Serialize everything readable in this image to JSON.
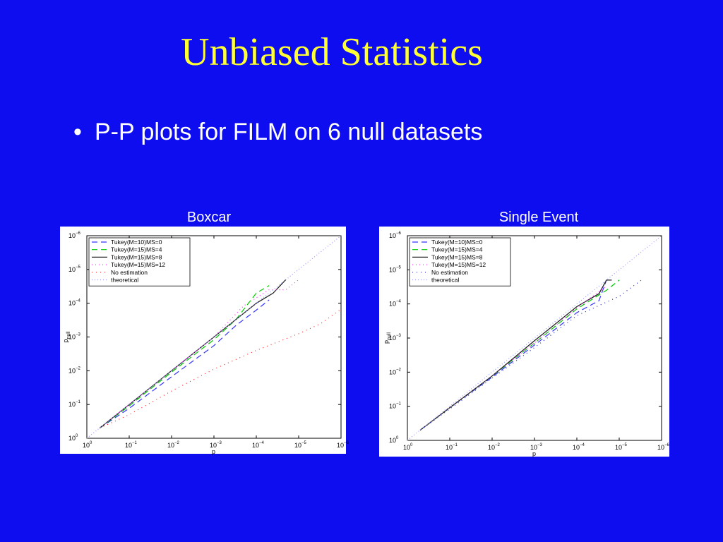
{
  "title": "Unbiased Statistics",
  "bullet": "P-P plots for FILM on 6 null datasets",
  "colors": {
    "background": "#0d0df0",
    "title": "#ffff33",
    "text": "#ffffff"
  },
  "chart_data": [
    {
      "type": "line",
      "title": "Boxcar",
      "xlabel": "p",
      "ylabel": "p",
      "ylabel_subscript": "null",
      "x_scale": "log-reversed",
      "y_scale": "log-reversed",
      "xlim": [
        1,
        1e-06
      ],
      "ylim": [
        1,
        1e-06
      ],
      "x_ticks": [
        {
          "base": "10",
          "exp": "0"
        },
        {
          "base": "10",
          "exp": "−1"
        },
        {
          "base": "10",
          "exp": "−2"
        },
        {
          "base": "10",
          "exp": "−3"
        },
        {
          "base": "10",
          "exp": "−4"
        },
        {
          "base": "10",
          "exp": "−5"
        },
        {
          "base": "10",
          "exp": "−6"
        }
      ],
      "y_ticks": [
        {
          "base": "10",
          "exp": "0"
        },
        {
          "base": "10",
          "exp": "−1"
        },
        {
          "base": "10",
          "exp": "−2"
        },
        {
          "base": "10",
          "exp": "−3"
        },
        {
          "base": "10",
          "exp": "−4"
        },
        {
          "base": "10",
          "exp": "−5"
        },
        {
          "base": "10",
          "exp": "−6"
        }
      ],
      "grid": false,
      "legend_position": "top-left",
      "series": [
        {
          "name": "Tukey(M=10)MS=0",
          "color": "#3333ff",
          "dash": "8,5",
          "x": [
            0.5,
            0.1,
            0.01,
            0.001,
            0.0003,
            0.0001,
            5e-05
          ],
          "y": [
            0.5,
            0.13,
            0.015,
            0.0018,
            0.00045,
            0.00016,
            8e-05
          ]
        },
        {
          "name": "Tukey(M=15)MS=4",
          "color": "#00cc00",
          "dash": "8,5",
          "x": [
            0.5,
            0.1,
            0.01,
            0.001,
            0.0003,
            0.0001,
            5e-05
          ],
          "y": [
            0.5,
            0.11,
            0.011,
            0.0012,
            0.0003,
            5e-05,
            3e-05
          ]
        },
        {
          "name": "Tukey(M=15)MS=8",
          "color": "#222222",
          "dash": "",
          "x": [
            0.5,
            0.1,
            0.01,
            0.001,
            0.0003,
            0.0001,
            4e-05,
            2e-05
          ],
          "y": [
            0.5,
            0.1,
            0.01,
            0.001,
            0.0003,
            0.0001,
            5e-05,
            2e-05
          ]
        },
        {
          "name": "Tukey(M=15)MS=12",
          "color": "#ff33ff",
          "dash": "1,4",
          "x": [
            0.5,
            0.1,
            0.01,
            0.001,
            0.0002,
            5e-05,
            2e-05,
            1e-05
          ],
          "y": [
            0.5,
            0.1,
            0.01,
            0.001,
            0.00012,
            4e-05,
            4e-05,
            2e-05
          ]
        },
        {
          "name": "No estimation",
          "color": "#ff2222",
          "dash": "1,5",
          "x": [
            0.5,
            0.1,
            0.01,
            0.001,
            0.0001,
            1e-05,
            3e-06,
            1e-06
          ],
          "y": [
            0.5,
            0.2,
            0.04,
            0.009,
            0.0025,
            0.0008,
            0.0004,
            0.00015
          ]
        },
        {
          "name": "theoretical",
          "color": "#9999ff",
          "dash": "1,3",
          "x": [
            1,
            1e-06
          ],
          "y": [
            1,
            1e-06
          ]
        }
      ]
    },
    {
      "type": "line",
      "title": "Single Event",
      "xlabel": "p",
      "ylabel": "p",
      "ylabel_subscript": "null",
      "x_scale": "log-reversed",
      "y_scale": "log-reversed",
      "xlim": [
        1,
        1e-06
      ],
      "ylim": [
        1,
        1e-06
      ],
      "x_ticks": [
        {
          "base": "10",
          "exp": "0"
        },
        {
          "base": "10",
          "exp": "−1"
        },
        {
          "base": "10",
          "exp": "−2"
        },
        {
          "base": "10",
          "exp": "−3"
        },
        {
          "base": "10",
          "exp": "−4"
        },
        {
          "base": "10",
          "exp": "−5"
        },
        {
          "base": "10",
          "exp": "−6"
        }
      ],
      "y_ticks": [
        {
          "base": "10",
          "exp": "0"
        },
        {
          "base": "10",
          "exp": "−1"
        },
        {
          "base": "10",
          "exp": "−2"
        },
        {
          "base": "10",
          "exp": "−3"
        },
        {
          "base": "10",
          "exp": "−4"
        },
        {
          "base": "10",
          "exp": "−5"
        },
        {
          "base": "10",
          "exp": "−6"
        }
      ],
      "grid": false,
      "legend_position": "top-left",
      "series": [
        {
          "name": "Tukey(M=10)MS=0",
          "color": "#3333ff",
          "dash": "8,5",
          "x": [
            0.5,
            0.1,
            0.01,
            0.001,
            0.0001,
            3e-05,
            2e-05
          ],
          "y": [
            0.5,
            0.11,
            0.014,
            0.0016,
            0.00018,
            8e-05,
            2e-05
          ]
        },
        {
          "name": "Tukey(M=15)MS=4",
          "color": "#00cc00",
          "dash": "8,5",
          "x": [
            0.5,
            0.1,
            0.01,
            0.001,
            0.0001,
            2e-05,
            1e-05
          ],
          "y": [
            0.5,
            0.11,
            0.013,
            0.0014,
            0.00014,
            4e-05,
            2e-05
          ]
        },
        {
          "name": "Tukey(M=15)MS=8",
          "color": "#222222",
          "dash": "",
          "x": [
            0.5,
            0.1,
            0.01,
            0.001,
            0.0001,
            3e-05,
            2e-05,
            1.5e-05
          ],
          "y": [
            0.5,
            0.11,
            0.013,
            0.0012,
            0.00012,
            5e-05,
            2e-05,
            2e-05
          ]
        },
        {
          "name": "Tukey(M=15)MS=12",
          "color": "#ff33ff",
          "dash": "1,4",
          "x": [
            0.5,
            0.1,
            0.01,
            0.001,
            0.0001,
            2e-05
          ],
          "y": [
            0.5,
            0.11,
            0.013,
            0.0014,
            0.00013,
            3e-05
          ]
        },
        {
          "name": "No estimation",
          "color": "#2222cc",
          "dash": "1,5",
          "x": [
            0.5,
            0.1,
            0.01,
            0.001,
            0.0001,
            1e-05,
            3e-06
          ],
          "y": [
            0.5,
            0.12,
            0.015,
            0.0019,
            0.00022,
            6e-05,
            2e-05
          ]
        },
        {
          "name": "theoretical",
          "color": "#9999ff",
          "dash": "1,3",
          "x": [
            1,
            1e-06
          ],
          "y": [
            1,
            1e-06
          ]
        }
      ]
    }
  ]
}
